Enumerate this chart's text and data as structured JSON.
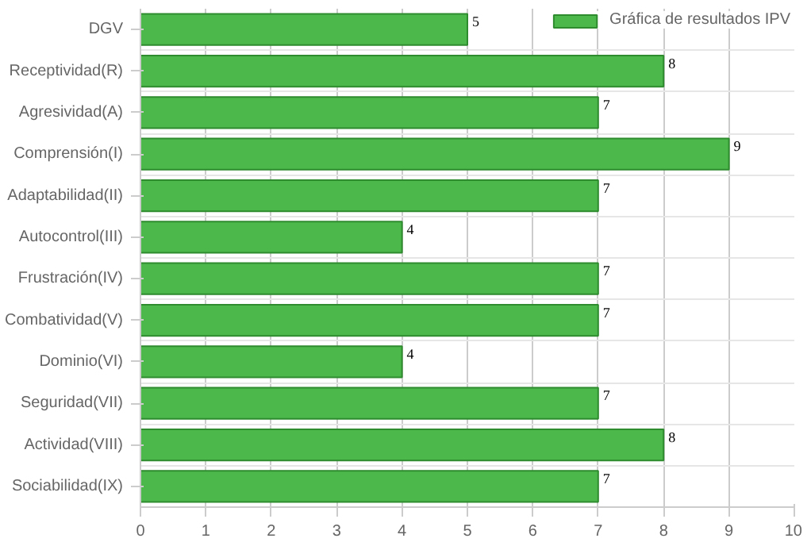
{
  "chart_data": {
    "type": "bar",
    "orientation": "horizontal",
    "categories": [
      "DGV",
      "Receptividad(R)",
      "Agresividad(A)",
      "Comprensión(I)",
      "Adaptabilidad(II)",
      "Autocontrol(III)",
      "Frustración(IV)",
      "Combatividad(V)",
      "Dominio(VI)",
      "Seguridad(VII)",
      "Actividad(VIII)",
      "Sociabilidad(IX)"
    ],
    "series": [
      {
        "name": "Gráfica de resultados IPV",
        "color": "#4cb84c",
        "values": [
          5,
          8,
          7,
          9,
          7,
          4,
          7,
          7,
          4,
          7,
          8,
          7
        ]
      }
    ],
    "xlim": [
      0,
      10
    ],
    "xticks": [
      0,
      1,
      2,
      3,
      4,
      5,
      6,
      7,
      8,
      9,
      10
    ],
    "grid": true,
    "legend": "top",
    "data_labels": true
  }
}
